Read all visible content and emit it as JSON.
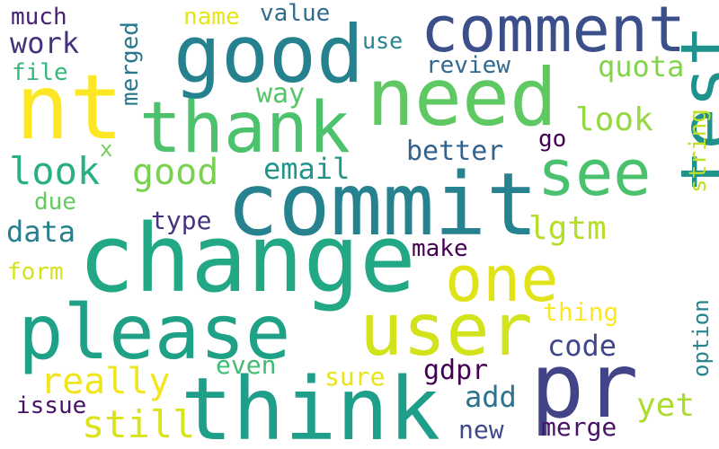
{
  "words": [
    {
      "text": "comment",
      "color": "#3b4f8a"
    },
    {
      "text": "good",
      "color": "#26818e"
    },
    {
      "text": "need",
      "color": "#5ec962"
    },
    {
      "text": "nt",
      "color": "#fde725"
    },
    {
      "text": "thank",
      "color": "#4cc26c"
    },
    {
      "text": "see",
      "color": "#4ac16d"
    },
    {
      "text": "commit",
      "color": "#26828e"
    },
    {
      "text": "change",
      "color": "#22a884"
    },
    {
      "text": "test",
      "color": "#20928c"
    },
    {
      "text": "one",
      "color": "#dfe318"
    },
    {
      "text": "please",
      "color": "#1fa187"
    },
    {
      "text": "user",
      "color": "#d2e21b"
    },
    {
      "text": "think",
      "color": "#1f9e89"
    },
    {
      "text": "pr",
      "color": "#414487"
    },
    {
      "text": "much",
      "color": "#482173"
    },
    {
      "text": "merged",
      "color": "#2a788e"
    },
    {
      "text": "name",
      "color": "#e4e51a"
    },
    {
      "text": "value",
      "color": "#2f6c8e"
    },
    {
      "text": "work",
      "color": "#46327e"
    },
    {
      "text": "use",
      "color": "#25838e"
    },
    {
      "text": "quota",
      "color": "#84d44b"
    },
    {
      "text": "review",
      "color": "#31688e"
    },
    {
      "text": "file",
      "color": "#35b779"
    },
    {
      "text": "way",
      "color": "#54c568"
    },
    {
      "text": "string",
      "color": "#c2df23"
    },
    {
      "text": "look",
      "color": "#95d840"
    },
    {
      "text": "look",
      "color": "#2ab07f"
    },
    {
      "text": "good",
      "color": "#7ad151"
    },
    {
      "text": "email",
      "color": "#1f958b"
    },
    {
      "text": "better",
      "color": "#33638d"
    },
    {
      "text": "go",
      "color": "#440154"
    },
    {
      "text": "x",
      "color": "#6ece58"
    },
    {
      "text": "due",
      "color": "#63cb5f"
    },
    {
      "text": "data",
      "color": "#277f8e"
    },
    {
      "text": "type",
      "color": "#46337e"
    },
    {
      "text": "lgtm",
      "color": "#b5de2b"
    },
    {
      "text": "make",
      "color": "#440154"
    },
    {
      "text": "form",
      "color": "#d5e21a"
    },
    {
      "text": "thing",
      "color": "#fde725"
    },
    {
      "text": "code",
      "color": "#3f4788"
    },
    {
      "text": "option",
      "color": "#25848e"
    },
    {
      "text": "even",
      "color": "#40bd72"
    },
    {
      "text": "really",
      "color": "#f1e51d"
    },
    {
      "text": "sure",
      "color": "#e7e419"
    },
    {
      "text": "gdpr",
      "color": "#440154"
    },
    {
      "text": "add",
      "color": "#2c718e"
    },
    {
      "text": "issue",
      "color": "#471365"
    },
    {
      "text": "still",
      "color": "#dae319"
    },
    {
      "text": "new",
      "color": "#3e4a89"
    },
    {
      "text": "merge",
      "color": "#471365"
    },
    {
      "text": "yet",
      "color": "#addc30"
    }
  ]
}
